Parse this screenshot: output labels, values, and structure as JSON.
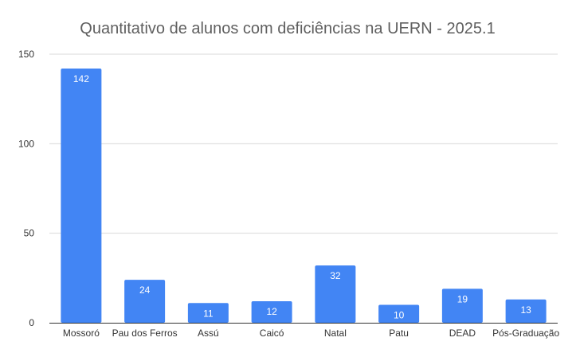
{
  "chart_data": {
    "type": "bar",
    "title": "Quantitativo de alunos com deficiências na UERN - 2025.1",
    "xlabel": "",
    "ylabel": "",
    "categories": [
      "Mossoró",
      "Pau dos Ferros",
      "Assú",
      "Caicó",
      "Natal",
      "Patu",
      "DEAD",
      "Pós-Graduação"
    ],
    "values": [
      142,
      24,
      11,
      12,
      32,
      10,
      19,
      13
    ],
    "data_labels": [
      "142",
      "24",
      "11",
      "12",
      "32",
      "10",
      "19",
      "13"
    ],
    "ylim": [
      0,
      150
    ],
    "yticks": [
      0,
      50,
      100,
      150
    ],
    "ytick_labels": [
      "0",
      "50",
      "100",
      "150"
    ],
    "grid": true,
    "legend": "none",
    "colors": {
      "bar": "#4285f4",
      "grid": "#d9d9d9",
      "title": "#5f5f5f",
      "axis": "#333333"
    }
  }
}
